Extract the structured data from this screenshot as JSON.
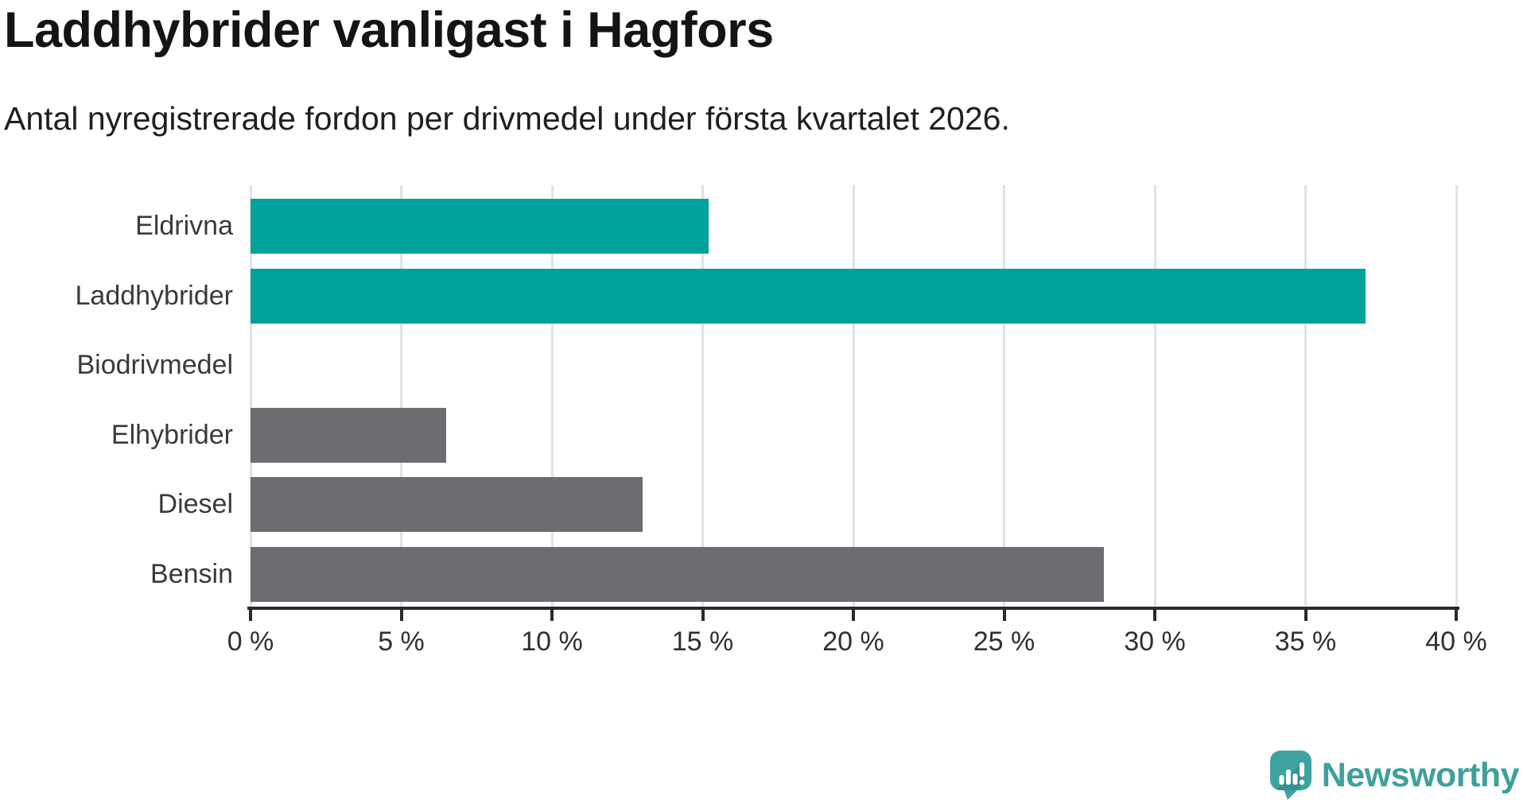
{
  "title": "Laddhybrider vanligast i Hagfors",
  "subtitle": "Antal nyregistrerade fordon per drivmedel under första kvartalet 2026.",
  "chart_data": {
    "type": "bar",
    "orientation": "horizontal",
    "title": "Laddhybrider vanligast i Hagfors",
    "subtitle": "Antal nyregistrerade fordon per drivmedel under första kvartalet 2026.",
    "categories": [
      "Eldrivna",
      "Laddhybrider",
      "Biodrivmedel",
      "Elhybrider",
      "Diesel",
      "Bensin"
    ],
    "values": [
      15.2,
      37.0,
      0,
      6.5,
      13.0,
      28.3
    ],
    "unit": "%",
    "bar_colors": [
      "#00a29b",
      "#00a29b",
      "#6c6c71",
      "#6c6c71",
      "#6c6c71",
      "#6c6c71"
    ],
    "highlight_color": "#00a29b",
    "default_color": "#6c6c71",
    "xlabel": "",
    "ylabel": "",
    "xlim": [
      0,
      40
    ],
    "x_ticks": [
      0,
      5,
      10,
      15,
      20,
      25,
      30,
      35,
      40
    ],
    "x_tick_labels": [
      "0 %",
      "5 %",
      "10 %",
      "15 %",
      "20 %",
      "25 %",
      "30 %",
      "35 %",
      "40 %"
    ],
    "grid": "vertical",
    "gridline_color": "#e2e2e2",
    "axis_color": "#2b2b2b",
    "legend": "none"
  },
  "branding": {
    "logo_text": "Newsworthy",
    "logo_text_color": "#3fa09b",
    "logo_mark_color": "#3ea3a0",
    "logo_mark_shadow_color": "#267e7d"
  }
}
